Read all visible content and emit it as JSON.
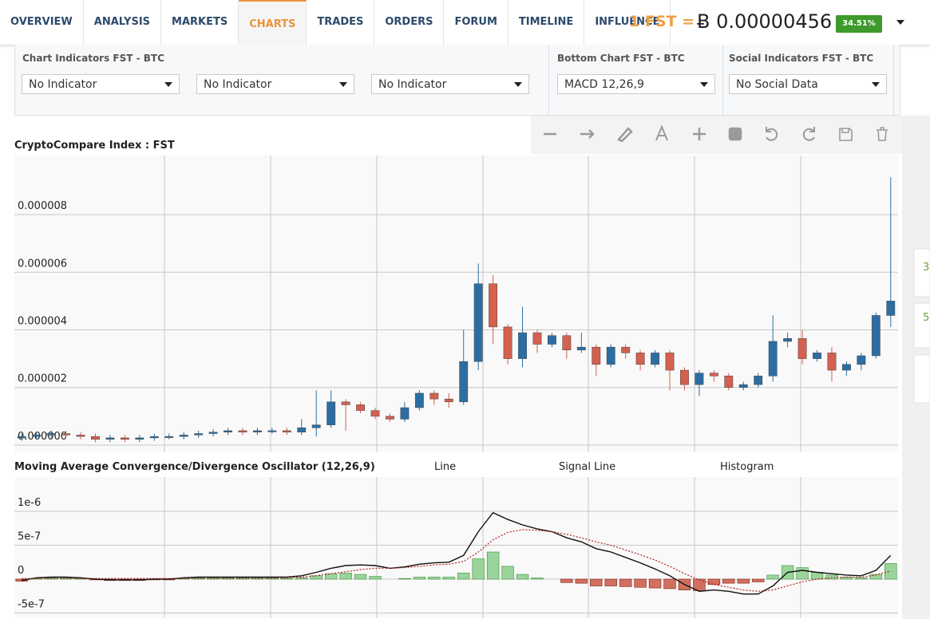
{
  "nav": {
    "tabs": [
      "OVERVIEW",
      "ANALYSIS",
      "MARKETS",
      "CHARTS",
      "TRADES",
      "ORDERS",
      "FORUM",
      "TIMELINE",
      "INFLUENCE"
    ],
    "active": 3
  },
  "price": {
    "label": "1 FST =",
    "value": "Ƀ 0.00000456",
    "change": "34.51%"
  },
  "indicators": [
    {
      "title": "Chart Indicators FST - BTC",
      "selects": [
        "No Indicator",
        "No Indicator",
        "No Indicator"
      ]
    },
    {
      "title": "Bottom Chart FST - BTC",
      "selects": [
        "MACD 12,26,9"
      ]
    },
    {
      "title": "Social Indicators FST - BTC",
      "selects": [
        "No Social Data"
      ]
    }
  ],
  "edge_labels": [
    "3",
    "5"
  ],
  "chart_data": [
    {
      "type": "candlestick",
      "title": "CryptoCompare Index : FST",
      "colors": {
        "up": "#2c6ea3",
        "down": "#d4604f"
      },
      "ylim": [
        -2.5e-07,
        1.005e-05
      ],
      "yticks": [
        {
          "value": 0,
          "label": "0.000000"
        },
        {
          "value": 2e-06,
          "label": "0.000002"
        },
        {
          "value": 4e-06,
          "label": "0.000004"
        },
        {
          "value": 6e-06,
          "label": "0.000006"
        },
        {
          "value": 8e-06,
          "label": "0.000008"
        }
      ],
      "grid": true,
      "open": [
        2.5e-07,
        3e-07,
        3.5e-07,
        4e-07,
        3.5e-07,
        3e-07,
        2e-07,
        2.5e-07,
        2e-07,
        2.5e-07,
        3e-07,
        3e-07,
        3.5e-07,
        4e-07,
        4.5e-07,
        5e-07,
        4.5e-07,
        5e-07,
        5e-07,
        4.5e-07,
        6e-07,
        7e-07,
        1.5e-06,
        1.4e-06,
        1.2e-06,
        1e-06,
        9e-07,
        1.3e-06,
        1.8e-06,
        1.6e-06,
        1.5e-06,
        2.9e-06,
        5.6e-06,
        4.1e-06,
        3e-06,
        3.9e-06,
        3.5e-06,
        3.8e-06,
        3.3e-06,
        3.4e-06,
        2.8e-06,
        3.4e-06,
        3.2e-06,
        2.8e-06,
        3.2e-06,
        2.6e-06,
        2.1e-06,
        2.5e-06,
        2.4e-06,
        2e-06,
        2.1e-06,
        2.4e-06,
        3.6e-06,
        3.7e-06,
        3e-06,
        3.2e-06,
        2.6e-06,
        2.8e-06,
        3.1e-06,
        4.5e-06
      ],
      "high": [
        4e-07,
        4.5e-07,
        5e-07,
        5e-07,
        4.5e-07,
        4e-07,
        3.5e-07,
        3.5e-07,
        3.5e-07,
        4e-07,
        4e-07,
        4.5e-07,
        5e-07,
        5.5e-07,
        6e-07,
        6e-07,
        6e-07,
        6e-07,
        6e-07,
        9e-07,
        1.9e-06,
        1.9e-06,
        1.6e-06,
        1.5e-06,
        1.3e-06,
        1.1e-06,
        1.5e-06,
        1.9e-06,
        1.9e-06,
        1.8e-06,
        4e-06,
        6.3e-06,
        5.9e-06,
        4.2e-06,
        4.8e-06,
        4e-06,
        3.9e-06,
        3.9e-06,
        3.9e-06,
        3.5e-06,
        3.5e-06,
        3.5e-06,
        3.3e-06,
        3.3e-06,
        3.3e-06,
        2.7e-06,
        2.6e-06,
        2.6e-06,
        2.5e-06,
        2.2e-06,
        2.5e-06,
        4.5e-06,
        3.9e-06,
        4e-06,
        3.3e-06,
        3.4e-06,
        2.9e-06,
        3.2e-06,
        4.6e-06,
        9.3e-06
      ],
      "low": [
        1.5e-07,
        2e-07,
        2.5e-07,
        2.5e-07,
        2e-07,
        1e-07,
        1e-07,
        1e-07,
        1e-07,
        1.5e-07,
        2e-07,
        2e-07,
        2.5e-07,
        3e-07,
        3.5e-07,
        3.5e-07,
        3.5e-07,
        4e-07,
        3.5e-07,
        3.5e-07,
        3e-07,
        6e-07,
        5e-07,
        1.1e-06,
        9e-07,
        8e-07,
        8e-07,
        1.2e-06,
        1.4e-06,
        1.3e-06,
        1.4e-06,
        2.6e-06,
        3.5e-06,
        2.8e-06,
        2.7e-06,
        3.2e-06,
        3.4e-06,
        3e-06,
        3.2e-06,
        2.4e-06,
        2.7e-06,
        3e-06,
        2.6e-06,
        2.7e-06,
        1.9e-06,
        1.9e-06,
        1.7e-06,
        2.2e-06,
        1.9e-06,
        1.9e-06,
        2e-06,
        2.2e-06,
        3.4e-06,
        2.8e-06,
        2.9e-06,
        2.2e-06,
        2.4e-06,
        2.6e-06,
        3e-06,
        4.1e-06
      ],
      "close": [
        3e-07,
        3.5e-07,
        4e-07,
        3.5e-07,
        3e-07,
        2e-07,
        2.5e-07,
        2e-07,
        2.5e-07,
        3e-07,
        3e-07,
        3.5e-07,
        4e-07,
        4.5e-07,
        5e-07,
        4.5e-07,
        5e-07,
        5e-07,
        4.5e-07,
        6e-07,
        7e-07,
        1.5e-06,
        1.4e-06,
        1.2e-06,
        1e-06,
        9e-07,
        1.3e-06,
        1.8e-06,
        1.6e-06,
        1.5e-06,
        2.9e-06,
        5.6e-06,
        4.1e-06,
        3e-06,
        3.9e-06,
        3.5e-06,
        3.8e-06,
        3.3e-06,
        3.4e-06,
        2.8e-06,
        3.4e-06,
        3.2e-06,
        2.8e-06,
        3.2e-06,
        2.6e-06,
        2.1e-06,
        2.5e-06,
        2.4e-06,
        2e-06,
        2.1e-06,
        2.4e-06,
        3.6e-06,
        3.7e-06,
        3e-06,
        3.2e-06,
        2.6e-06,
        2.8e-06,
        3.1e-06,
        4.5e-06,
        5e-06
      ]
    },
    {
      "type": "macd",
      "title": "Moving Average Convergence/Divergence Oscillator (12,26,9)",
      "ylim": [
        -5.76e-07,
        1.506e-06
      ],
      "yticks": [
        {
          "value": -5e-07,
          "label": "-5e-7"
        },
        0,
        {
          "value": 5e-07,
          "label": "5e-7"
        },
        {
          "value": 1e-06,
          "label": "1e-6"
        }
      ],
      "grid": true,
      "series": [
        {
          "name": "Line",
          "type": "line",
          "color": "#111111",
          "values": [
            -2e-08,
            2e-08,
            3e-08,
            3e-08,
            2e-08,
            0,
            -1e-08,
            -1e-08,
            -1e-08,
            0,
            0,
            2e-08,
            3e-08,
            3e-08,
            3e-08,
            3e-08,
            3e-08,
            3e-08,
            3e-08,
            5e-08,
            1e-07,
            1.6e-07,
            2e-07,
            2.1e-07,
            2e-07,
            1.6e-07,
            1.8e-07,
            2.2e-07,
            2.4e-07,
            2.5e-07,
            3.5e-07,
            7e-07,
            9.8e-07,
            8.8e-07,
            8e-07,
            7.4e-07,
            7e-07,
            6.1e-07,
            5.5e-07,
            4.5e-07,
            4e-07,
            3.2e-07,
            2.4e-07,
            1.5e-07,
            5e-08,
            -8e-08,
            -1.8e-07,
            -1.6e-07,
            -1.8e-07,
            -2.2e-07,
            -2.2e-07,
            -1e-07,
            1e-07,
            1.3e-07,
            1e-07,
            8e-08,
            6e-08,
            5e-08,
            1.3e-07,
            3.5e-07
          ]
        },
        {
          "name": "Signal Line",
          "type": "line",
          "dashed": true,
          "color": "#b22222",
          "values": [
            1e-08,
            1e-08,
            1e-08,
            1e-08,
            1e-08,
            1e-08,
            1e-08,
            1e-08,
            1e-08,
            1e-08,
            1e-08,
            1e-08,
            1e-08,
            1e-08,
            1e-08,
            1e-08,
            1e-08,
            1e-08,
            2e-08,
            3e-08,
            5e-08,
            8e-08,
            1.1e-07,
            1.4e-07,
            1.6e-07,
            1.6e-07,
            1.7e-07,
            1.9e-07,
            2.1e-07,
            2.2e-07,
            2.6e-07,
            4e-07,
            5.8e-07,
            6.9e-07,
            7.3e-07,
            7.2e-07,
            7e-07,
            6.6e-07,
            6.1e-07,
            5.5e-07,
            5e-07,
            4.3e-07,
            3.6e-07,
            2.8e-07,
            1.9e-07,
            8e-08,
            -1e-08,
            -8e-08,
            -1.2e-07,
            -1.6e-07,
            -1.8e-07,
            -1.6e-07,
            -1e-07,
            -4e-08,
            0,
            2e-08,
            3e-08,
            3e-08,
            6e-08,
            1.2e-07
          ]
        },
        {
          "name": "Histogram",
          "type": "bar",
          "colors": {
            "up": "#9ad49a",
            "down": "#d2705f"
          },
          "values": [
            -3e-08,
            1e-08,
            2e-08,
            2e-08,
            1e-08,
            -1e-08,
            -2e-08,
            -2e-08,
            -2e-08,
            -1e-08,
            -1e-08,
            1e-08,
            2e-08,
            2e-08,
            2e-08,
            2e-08,
            2e-08,
            2e-08,
            1e-08,
            2e-08,
            5e-08,
            8e-08,
            9e-08,
            7e-08,
            4e-08,
            0,
            1e-08,
            3e-08,
            3e-08,
            3e-08,
            9e-08,
            3e-07,
            4e-07,
            1.9e-07,
            7e-08,
            2e-08,
            0,
            -5e-08,
            -6e-08,
            -1e-07,
            -1e-07,
            -1.1e-07,
            -1.2e-07,
            -1.3e-07,
            -1.4e-07,
            -1.6e-07,
            -1.7e-07,
            -8e-08,
            -6e-08,
            -6e-08,
            -4e-08,
            6e-08,
            2e-07,
            1.7e-07,
            1e-07,
            6e-08,
            3e-08,
            2e-08,
            7e-08,
            2.3e-07
          ]
        }
      ]
    }
  ]
}
